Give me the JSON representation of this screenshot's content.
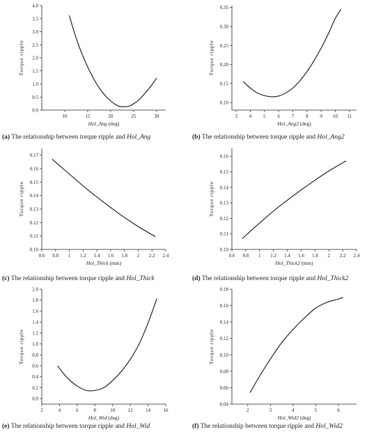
{
  "chart_data": [
    {
      "type": "line",
      "caption": {
        "letter": "(a)",
        "text": "The relationship between torque ripple and ",
        "var": "Hol_Ang"
      },
      "xlabel": {
        "var": "Hol_Ang",
        "unit": " (deg)"
      },
      "ylabel": "Torque ripple",
      "xlim": [
        5,
        32
      ],
      "ylim": [
        0,
        4.0
      ],
      "xticks": [
        10,
        15,
        20,
        25,
        30
      ],
      "yticks": [
        0.0,
        0.5,
        1.0,
        1.5,
        2.0,
        2.5,
        3.0,
        3.5,
        4.0
      ],
      "ydec": 1,
      "x": [
        11,
        12,
        13,
        14,
        15,
        16,
        17,
        18,
        19,
        20,
        21,
        22,
        23,
        24,
        25,
        26,
        27,
        28,
        29,
        30
      ],
      "y": [
        3.62,
        3.02,
        2.5,
        2.05,
        1.65,
        1.3,
        0.99,
        0.73,
        0.52,
        0.35,
        0.22,
        0.14,
        0.13,
        0.15,
        0.24,
        0.37,
        0.55,
        0.75,
        0.97,
        1.22
      ]
    },
    {
      "type": "line",
      "caption": {
        "letter": "(b)",
        "text": "The relationship between torque ripple and ",
        "var": "Hol_Ang2"
      },
      "xlabel": {
        "var": "Hol_Ang2",
        "unit": " (deg)"
      },
      "ylabel": "Torque ripple",
      "xlim": [
        2.7,
        11.5
      ],
      "ylim": [
        0.08,
        0.355
      ],
      "xticks": [
        3,
        4,
        5,
        6,
        7,
        8,
        9,
        10,
        11
      ],
      "yticks": [
        0.1,
        0.15,
        0.2,
        0.25,
        0.3,
        0.35
      ],
      "ydec": 2,
      "x": [
        3.5,
        4.0,
        4.5,
        5.0,
        5.5,
        6.0,
        6.5,
        7.0,
        7.5,
        8.0,
        8.5,
        9.0,
        9.5,
        10.0,
        10.4
      ],
      "y": [
        0.155,
        0.138,
        0.125,
        0.118,
        0.115,
        0.117,
        0.125,
        0.138,
        0.157,
        0.181,
        0.21,
        0.243,
        0.28,
        0.321,
        0.345
      ]
    },
    {
      "type": "line",
      "caption": {
        "letter": "(c)",
        "text": "The relationship between torque ripple and ",
        "var": "Hol_Thick"
      },
      "xlabel": {
        "var": "Hol_Thick",
        "unit": " (mm)"
      },
      "ylabel": "Torque ripple",
      "xlim": [
        0.6,
        2.4
      ],
      "ylim": [
        0.1,
        0.175
      ],
      "xticks": [
        0.6,
        0.8,
        1.0,
        1.2,
        1.4,
        1.6,
        1.8,
        2.0,
        2.2,
        2.4
      ],
      "yticks": [
        0.1,
        0.11,
        0.12,
        0.13,
        0.14,
        0.15,
        0.16,
        0.17
      ],
      "ydec": 2,
      "x": [
        0.75,
        1.0,
        1.25,
        1.5,
        1.75,
        2.0,
        2.25
      ],
      "y": [
        0.167,
        0.156,
        0.145,
        0.135,
        0.1255,
        0.117,
        0.1095
      ]
    },
    {
      "type": "line",
      "caption": {
        "letter": "(d)",
        "text": "The relationship between torque ripple and ",
        "var": "Hol_Thick2"
      },
      "xlabel": {
        "var": "Hol_Thick2",
        "unit": " (mm)"
      },
      "ylabel": "Torque ripple",
      "xlim": [
        0.6,
        2.4
      ],
      "ylim": [
        0.1,
        0.165
      ],
      "xticks": [
        0.6,
        0.8,
        1.0,
        1.2,
        1.4,
        1.6,
        1.8,
        2.0,
        2.2,
        2.4
      ],
      "yticks": [
        0.1,
        0.11,
        0.12,
        0.13,
        0.14,
        0.15,
        0.16
      ],
      "ydec": 2,
      "x": [
        0.75,
        1.0,
        1.25,
        1.5,
        1.75,
        2.0,
        2.25
      ],
      "y": [
        0.107,
        0.117,
        0.1265,
        0.135,
        0.143,
        0.1505,
        0.157
      ]
    },
    {
      "type": "line",
      "caption": {
        "letter": "(e)",
        "text": "The relationship between torque ripple and ",
        "var": "Hol_Wid"
      },
      "xlabel": {
        "var": "Hol_Wid",
        "unit": " (deg)"
      },
      "ylabel": "Torque ripple",
      "xlim": [
        2,
        16
      ],
      "ylim": [
        -0.1,
        2.0
      ],
      "xticks": [
        2,
        4,
        6,
        8,
        10,
        12,
        14,
        16
      ],
      "yticks": [
        0.0,
        0.2,
        0.4,
        0.6,
        0.8,
        1.0,
        1.2,
        1.4,
        1.6,
        1.8,
        2.0
      ],
      "ydec": 1,
      "x": [
        3.8,
        4.5,
        5.2,
        6.0,
        7.0,
        8.0,
        9.0,
        10.0,
        11.0,
        12.0,
        13.0,
        14.0,
        15.0
      ],
      "y": [
        0.6,
        0.45,
        0.33,
        0.23,
        0.15,
        0.15,
        0.2,
        0.33,
        0.5,
        0.72,
        1.0,
        1.38,
        1.83
      ]
    },
    {
      "type": "line",
      "caption": {
        "letter": "(f)",
        "text": "The relationship between torque ripple and ",
        "var": "Hol_Wid2"
      },
      "xlabel": {
        "var": "Hol_Wid2",
        "unit": " (deg)"
      },
      "ylabel": "Torque ripple",
      "xlim": [
        1.3,
        6.8
      ],
      "ylim": [
        0.04,
        0.18
      ],
      "xticks": [
        2,
        3,
        4,
        5,
        6
      ],
      "yticks": [
        0.04,
        0.06,
        0.08,
        0.1,
        0.12,
        0.14,
        0.16,
        0.18
      ],
      "ydec": 2,
      "x": [
        2.1,
        2.5,
        3.0,
        3.5,
        4.0,
        4.5,
        5.0,
        5.5,
        6.0,
        6.2
      ],
      "y": [
        0.054,
        0.073,
        0.095,
        0.115,
        0.131,
        0.145,
        0.157,
        0.164,
        0.168,
        0.17
      ]
    }
  ]
}
